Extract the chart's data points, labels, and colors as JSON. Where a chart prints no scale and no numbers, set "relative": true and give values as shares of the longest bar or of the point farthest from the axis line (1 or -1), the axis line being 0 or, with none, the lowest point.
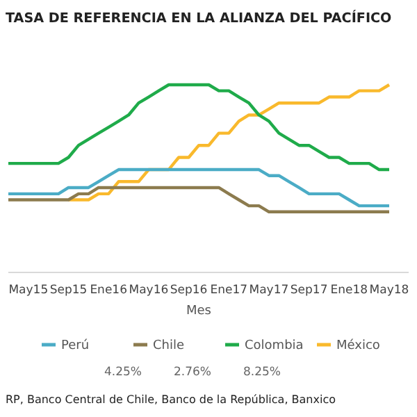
{
  "chart_data": {
    "type": "line",
    "title": "TASA DE REFERENCIA EN LA ALIANZA DEL PACÍFICO",
    "xlabel": "Mes",
    "relative": true,
    "legend": "bottom",
    "categories": [
      null,
      null,
      "May15",
      null,
      null,
      null,
      "Sep15",
      null,
      null,
      null,
      "Ene16",
      null,
      null,
      null,
      "May16",
      null,
      null,
      null,
      "Sep16",
      null,
      null,
      null,
      "Ene17",
      null,
      null,
      null,
      "May17",
      null,
      null,
      null,
      "Sep17",
      null,
      null,
      null,
      "Ene18",
      null,
      null,
      null,
      "May18"
    ],
    "series": [
      {
        "name": "Perú",
        "color": "#4bacc6",
        "values": [
          0.419,
          0.419,
          0.419,
          0.419,
          0.419,
          0.419,
          0.452,
          0.452,
          0.452,
          0.484,
          0.516,
          0.548,
          0.548,
          0.548,
          0.548,
          0.548,
          0.548,
          0.548,
          0.548,
          0.548,
          0.548,
          0.548,
          0.548,
          0.548,
          0.548,
          0.548,
          0.516,
          0.516,
          0.484,
          0.452,
          0.419,
          0.419,
          0.419,
          0.419,
          0.387,
          0.355,
          0.355,
          0.355,
          0.355
        ]
      },
      {
        "name": "Chile",
        "color": "#8c7b4e",
        "values": [
          0.387,
          0.387,
          0.387,
          0.387,
          0.387,
          0.387,
          0.387,
          0.419,
          0.419,
          0.452,
          0.452,
          0.452,
          0.452,
          0.452,
          0.452,
          0.452,
          0.452,
          0.452,
          0.452,
          0.452,
          0.452,
          0.452,
          0.419,
          0.387,
          0.355,
          0.355,
          0.323,
          0.323,
          0.323,
          0.323,
          0.323,
          0.323,
          0.323,
          0.323,
          0.323,
          0.323,
          0.323,
          0.323,
          0.323
        ]
      },
      {
        "name": "Colombia",
        "color": "#1fab4a",
        "values": [
          0.581,
          0.581,
          0.581,
          0.581,
          0.581,
          0.581,
          0.613,
          0.677,
          0.71,
          0.742,
          0.774,
          0.806,
          0.839,
          0.903,
          0.935,
          0.968,
          1,
          1,
          1,
          1,
          1,
          0.968,
          0.968,
          0.935,
          0.903,
          0.839,
          0.806,
          0.742,
          0.71,
          0.677,
          0.677,
          0.645,
          0.613,
          0.613,
          0.581,
          0.581,
          0.581,
          0.548,
          0.548
        ]
      },
      {
        "name": "México",
        "color": "#f9b92c",
        "values": [
          null,
          null,
          null,
          null,
          null,
          null,
          0.387,
          0.387,
          0.387,
          0.419,
          0.419,
          0.484,
          0.484,
          0.484,
          0.548,
          0.548,
          0.548,
          0.613,
          0.613,
          0.677,
          0.677,
          0.742,
          0.742,
          0.806,
          0.839,
          0.839,
          0.871,
          0.903,
          0.903,
          0.903,
          0.903,
          0.903,
          0.935,
          0.935,
          0.935,
          0.968,
          0.968,
          0.968,
          1
        ]
      }
    ],
    "annotations": [
      "4.25%",
      "2.76%",
      "8.25%",
      "RP, Banco Central de Chile, Banco de la República, Banxico"
    ]
  }
}
